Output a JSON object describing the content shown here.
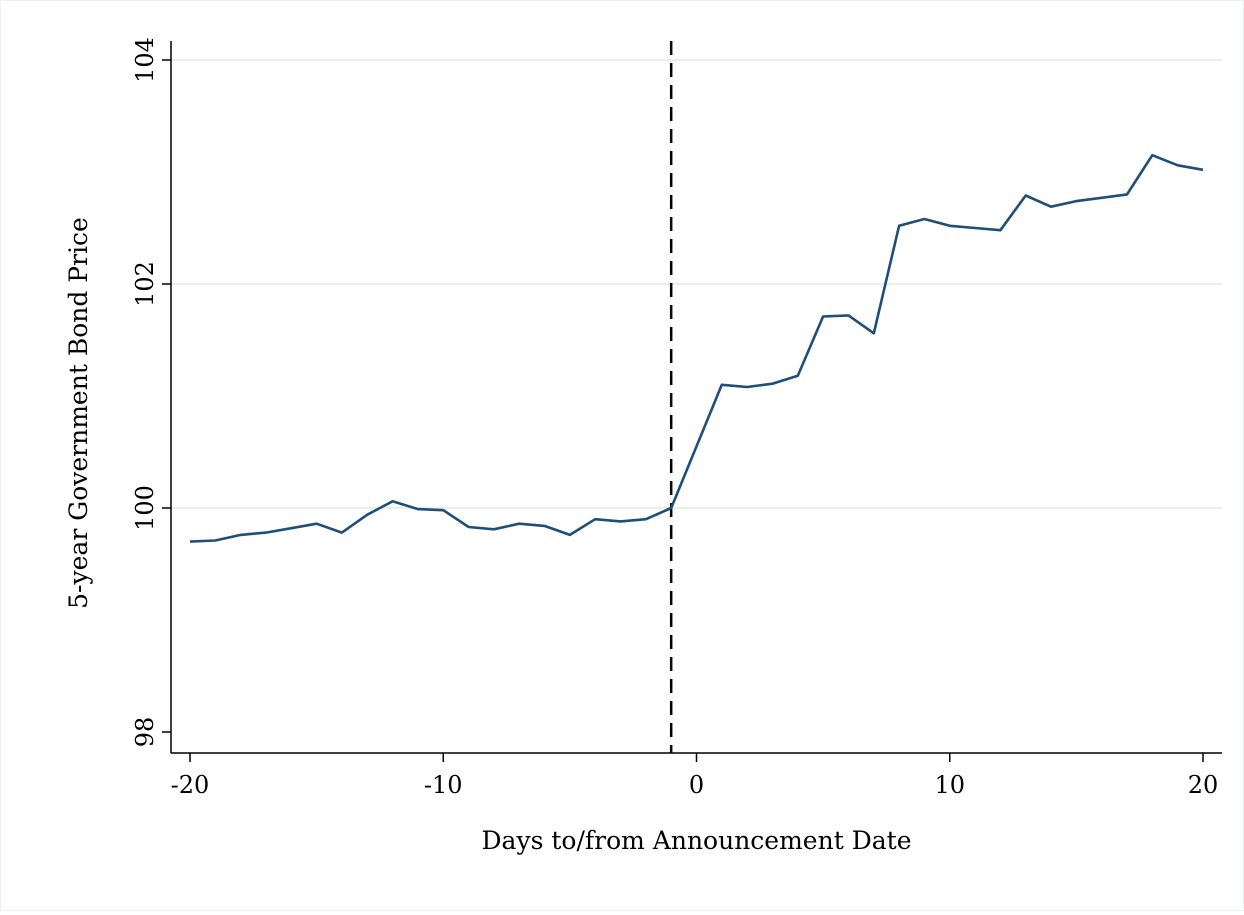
{
  "chart_data": {
    "type": "line",
    "title": "",
    "xlabel": "Days to/from Announcement Date",
    "ylabel": "5-year Government Bond Price",
    "xlim": [
      -20,
      20
    ],
    "ylim": [
      98,
      104
    ],
    "xticks": [
      -20,
      -10,
      0,
      10,
      20
    ],
    "xtick_labels": [
      "-20",
      "-10",
      "0",
      "10",
      "20"
    ],
    "yticks": [
      98,
      100,
      102,
      104
    ],
    "ytick_labels": [
      "98",
      "100",
      "102",
      "104"
    ],
    "grid": "horizontal",
    "legend": "none",
    "reference_line": {
      "x": -1,
      "style": "dashed",
      "color": "#000000"
    },
    "line_color": "#1f4e79",
    "gridline_color": "#e6f0f0",
    "series": [
      {
        "x": [
          -20,
          -19,
          -18,
          -17,
          -16,
          -15,
          -14,
          -13,
          -12,
          -11,
          -10,
          -9,
          -8,
          -7,
          -6,
          -5,
          -4,
          -3,
          -2,
          -1,
          0,
          1,
          2,
          3,
          4,
          5,
          6,
          7,
          8,
          9,
          10,
          11,
          12,
          13,
          14,
          15,
          16,
          17,
          18,
          19,
          20
        ],
        "values": [
          99.7,
          99.71,
          99.76,
          99.78,
          99.82,
          99.86,
          99.78,
          99.94,
          100.06,
          99.99,
          99.98,
          99.83,
          99.81,
          99.86,
          99.84,
          99.76,
          99.9,
          99.88,
          99.9,
          100.0,
          100.55,
          101.1,
          101.08,
          101.11,
          101.18,
          101.71,
          101.72,
          101.56,
          102.52,
          102.58,
          102.52,
          102.5,
          102.48,
          102.79,
          102.69,
          102.74,
          102.77,
          102.8,
          103.15,
          103.06,
          103.02
        ]
      }
    ]
  }
}
